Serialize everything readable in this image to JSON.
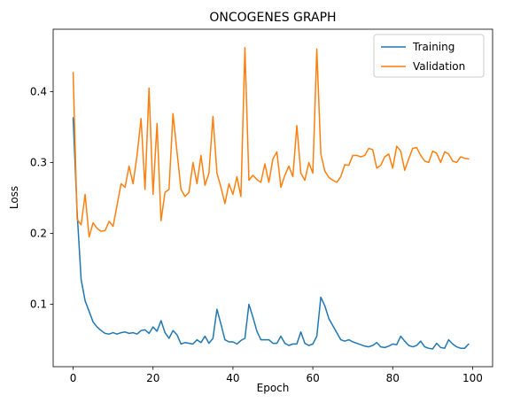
{
  "chart_data": {
    "type": "line",
    "title": "ONCOGENES GRAPH",
    "xlabel": "Epoch",
    "ylabel": "Loss",
    "xlim": [
      -5,
      105
    ],
    "ylim": [
      0.012,
      0.488
    ],
    "xticks": [
      0,
      20,
      40,
      60,
      80,
      100
    ],
    "yticks": [
      0.1,
      0.2,
      0.3,
      0.4
    ],
    "ytick_labels": [
      "0.1",
      "0.2",
      "0.3",
      "0.4"
    ],
    "grid": false,
    "legend_position": "top-right",
    "series": [
      {
        "name": "Training",
        "color": "#1f77b4",
        "values": [
          0.363,
          0.23,
          0.135,
          0.105,
          0.09,
          0.075,
          0.068,
          0.063,
          0.059,
          0.058,
          0.06,
          0.058,
          0.06,
          0.061,
          0.059,
          0.06,
          0.058,
          0.063,
          0.064,
          0.059,
          0.068,
          0.062,
          0.077,
          0.06,
          0.052,
          0.063,
          0.057,
          0.044,
          0.046,
          0.045,
          0.044,
          0.05,
          0.046,
          0.055,
          0.045,
          0.052,
          0.093,
          0.072,
          0.05,
          0.047,
          0.047,
          0.044,
          0.049,
          0.052,
          0.1,
          0.082,
          0.062,
          0.05,
          0.05,
          0.05,
          0.045,
          0.045,
          0.055,
          0.045,
          0.042,
          0.044,
          0.044,
          0.061,
          0.045,
          0.042,
          0.044,
          0.055,
          0.11,
          0.098,
          0.08,
          0.07,
          0.06,
          0.05,
          0.048,
          0.05,
          0.047,
          0.045,
          0.043,
          0.041,
          0.04,
          0.042,
          0.046,
          0.04,
          0.039,
          0.041,
          0.044,
          0.043,
          0.055,
          0.048,
          0.042,
          0.04,
          0.042,
          0.048,
          0.04,
          0.038,
          0.037,
          0.045,
          0.039,
          0.038,
          0.05,
          0.044,
          0.04,
          0.038,
          0.038,
          0.044
        ]
      },
      {
        "name": "Validation",
        "color": "#ff7f0e",
        "values": [
          0.427,
          0.22,
          0.212,
          0.255,
          0.195,
          0.215,
          0.207,
          0.203,
          0.204,
          0.217,
          0.21,
          0.24,
          0.27,
          0.265,
          0.295,
          0.27,
          0.31,
          0.362,
          0.262,
          0.405,
          0.255,
          0.355,
          0.218,
          0.258,
          0.262,
          0.369,
          0.315,
          0.262,
          0.252,
          0.258,
          0.3,
          0.27,
          0.31,
          0.268,
          0.285,
          0.365,
          0.285,
          0.265,
          0.242,
          0.27,
          0.255,
          0.28,
          0.252,
          0.462,
          0.275,
          0.282,
          0.276,
          0.272,
          0.298,
          0.272,
          0.305,
          0.315,
          0.265,
          0.282,
          0.295,
          0.28,
          0.352,
          0.285,
          0.275,
          0.3,
          0.285,
          0.46,
          0.312,
          0.288,
          0.279,
          0.275,
          0.272,
          0.28,
          0.297,
          0.296,
          0.31,
          0.31,
          0.308,
          0.31,
          0.32,
          0.318,
          0.292,
          0.296,
          0.308,
          0.312,
          0.292,
          0.323,
          0.316,
          0.289,
          0.305,
          0.32,
          0.321,
          0.31,
          0.302,
          0.3,
          0.316,
          0.313,
          0.3,
          0.315,
          0.312,
          0.302,
          0.3,
          0.308,
          0.306,
          0.305
        ]
      }
    ]
  }
}
